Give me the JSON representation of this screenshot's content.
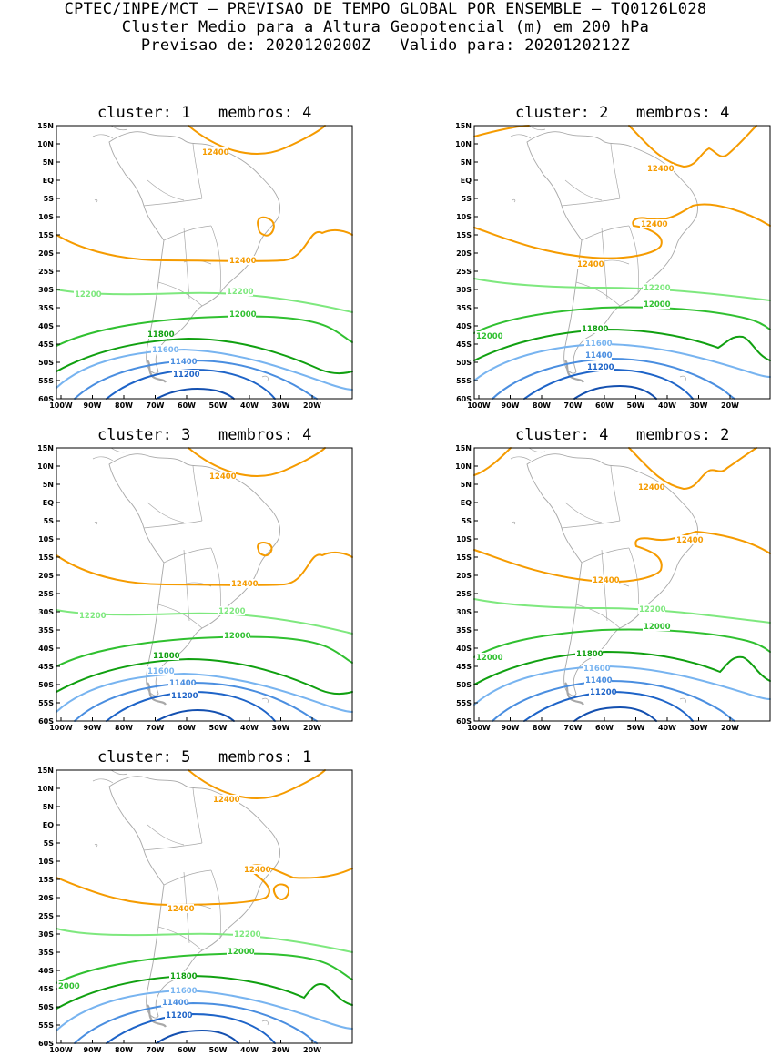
{
  "header": {
    "line1": "CPTEC/INPE/MCT — PREVISAO DE TEMPO GLOBAL POR ENSEMBLE — TQ0126L028",
    "line2": "Cluster Medio para a Altura Geopotencial (m) em 200 hPa",
    "line3": "Previsao de: 2020120200Z   Valido para: 2020120212Z"
  },
  "axes": {
    "lat_ticks": [
      "15N",
      "10N",
      "5N",
      "EQ",
      "5S",
      "10S",
      "15S",
      "20S",
      "25S",
      "30S",
      "35S",
      "40S",
      "45S",
      "50S",
      "55S",
      "60S"
    ],
    "lon_ticks": [
      "100W",
      "90W",
      "80W",
      "70W",
      "60W",
      "50W",
      "40W",
      "30W",
      "20W"
    ]
  },
  "colors": {
    "c12400": "#f59b00",
    "c12200": "#7ee87e",
    "c12000": "#30c030",
    "c11800": "#10a010",
    "c11600": "#78b4f0",
    "c11400": "#4a8ee0",
    "c11200": "#1e64c8",
    "c11000": "#1450b0",
    "coast": "#a8a8a8"
  },
  "clusters": [
    {
      "title": "cluster: 1   membros: 4",
      "labels": [
        "12400",
        "12400",
        "12200",
        "12200",
        "12000",
        "11800",
        "11600",
        "11400",
        "11200"
      ]
    },
    {
      "title": "cluster: 2   membros: 4",
      "labels": [
        "12400",
        "12400",
        "12400",
        "12200",
        "12000",
        "12000",
        "11800",
        "11600",
        "11400",
        "11200"
      ]
    },
    {
      "title": "cluster: 3   membros: 4",
      "labels": [
        "12400",
        "12400",
        "12200",
        "12200",
        "12000",
        "11800",
        "11600",
        "11400",
        "11200"
      ]
    },
    {
      "title": "cluster: 4   membros: 2",
      "labels": [
        "12400",
        "12400",
        "12400",
        "12200",
        "12000",
        "12000",
        "11800",
        "11600",
        "11400",
        "11200"
      ]
    },
    {
      "title": "cluster: 5   membros: 1",
      "labels": [
        "12400",
        "12400",
        "12400",
        "12200",
        "12000",
        "2000",
        "11800",
        "11600",
        "11400",
        "11200"
      ]
    }
  ]
}
